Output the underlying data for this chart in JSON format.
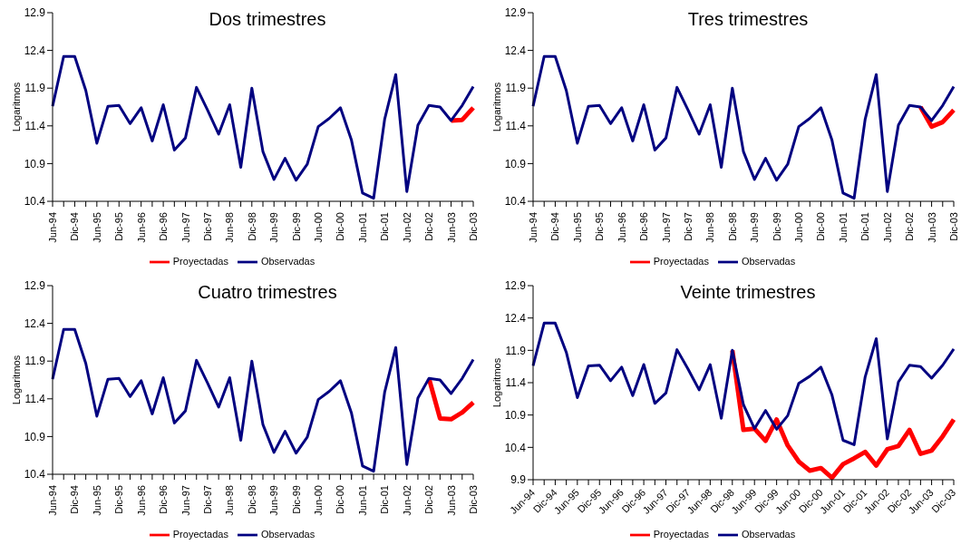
{
  "chart_data": [
    {
      "type": "line",
      "title": "Dos trimestres",
      "ylabel": "Logaritmos",
      "categories": [
        "Jun-94",
        null,
        "Dic-94",
        null,
        "Jun-95",
        null,
        "Dic-95",
        null,
        "Jun-96",
        null,
        "Dic-96",
        null,
        "Jun-97",
        null,
        "Dic-97",
        null,
        "Jun-98",
        null,
        "Dic-98",
        null,
        "Jun-99",
        null,
        "Dic-99",
        null,
        "Jun-00",
        null,
        "Dic-00",
        null,
        "Jun-01",
        null,
        "Dic-01",
        null,
        "Jun-02",
        null,
        "Dic-02",
        null,
        "Jun-03",
        null,
        "Dic-03"
      ],
      "ylim": [
        10.4,
        12.9
      ],
      "yticks": [
        10.4,
        10.9,
        11.4,
        11.9,
        12.4,
        12.9
      ],
      "grid": false,
      "legend": "bottom",
      "marker": "none",
      "series": [
        {
          "name": "Proyectadas",
          "color": "#ff0000",
          "values": [
            null,
            null,
            null,
            null,
            null,
            null,
            null,
            null,
            null,
            null,
            null,
            null,
            null,
            null,
            null,
            null,
            null,
            null,
            null,
            null,
            null,
            null,
            null,
            null,
            null,
            null,
            null,
            null,
            null,
            null,
            null,
            null,
            null,
            null,
            null,
            null,
            11.47,
            11.48,
            11.64
          ]
        },
        {
          "name": "Observadas",
          "color": "#000080",
          "values": [
            11.66,
            12.32,
            12.32,
            11.87,
            11.17,
            11.66,
            11.67,
            11.43,
            11.64,
            11.2,
            11.68,
            11.08,
            11.24,
            11.91,
            11.61,
            11.29,
            11.68,
            10.85,
            11.9,
            11.06,
            10.69,
            10.97,
            10.68,
            10.89,
            11.39,
            11.5,
            11.64,
            11.21,
            10.51,
            10.44,
            11.49,
            12.08,
            10.53,
            11.41,
            11.67,
            11.65,
            11.47,
            11.67,
            11.92
          ]
        }
      ]
    },
    {
      "type": "line",
      "title": "Tres trimestres",
      "ylabel": "Logaritmos",
      "categories": [
        "Jun-94",
        null,
        "Dic-94",
        null,
        "Jun-95",
        null,
        "Dic-95",
        null,
        "Jun-96",
        null,
        "Dic-96",
        null,
        "Jun-97",
        null,
        "Dic-97",
        null,
        "Jun-98",
        null,
        "Dic-98",
        null,
        "Jun-99",
        null,
        "Dic-99",
        null,
        "Jun-00",
        null,
        "Dic-00",
        null,
        "Jun-01",
        null,
        "Dic-01",
        null,
        "Jun-02",
        null,
        "Dic-02",
        null,
        "Jun-03",
        null,
        "Dic-03"
      ],
      "ylim": [
        10.4,
        12.9
      ],
      "yticks": [
        10.4,
        10.9,
        11.4,
        11.9,
        12.4,
        12.9
      ],
      "grid": false,
      "legend": "bottom",
      "marker": "none",
      "series": [
        {
          "name": "Proyectadas",
          "color": "#ff0000",
          "values": [
            null,
            null,
            null,
            null,
            null,
            null,
            null,
            null,
            null,
            null,
            null,
            null,
            null,
            null,
            null,
            null,
            null,
            null,
            null,
            null,
            null,
            null,
            null,
            null,
            null,
            null,
            null,
            null,
            null,
            null,
            null,
            null,
            null,
            null,
            null,
            11.65,
            11.39,
            11.45,
            11.61
          ]
        },
        {
          "name": "Observadas",
          "color": "#000080",
          "values": [
            11.66,
            12.32,
            12.32,
            11.87,
            11.17,
            11.66,
            11.67,
            11.43,
            11.64,
            11.2,
            11.68,
            11.08,
            11.24,
            11.91,
            11.61,
            11.29,
            11.68,
            10.85,
            11.9,
            11.06,
            10.69,
            10.97,
            10.68,
            10.89,
            11.39,
            11.5,
            11.64,
            11.21,
            10.51,
            10.44,
            11.49,
            12.08,
            10.53,
            11.41,
            11.67,
            11.65,
            11.47,
            11.67,
            11.92
          ]
        }
      ]
    },
    {
      "type": "line",
      "title": "Cuatro trimestres",
      "ylabel": "Logaritmos",
      "categories": [
        "Jun-94",
        null,
        "Dic-94",
        null,
        "Jun-95",
        null,
        "Dic-95",
        null,
        "Jun-96",
        null,
        "Dic-96",
        null,
        "Jun-97",
        null,
        "Dic-97",
        null,
        "Jun-98",
        null,
        "Dic-98",
        null,
        "Jun-99",
        null,
        "Dic-99",
        null,
        "Jun-00",
        null,
        "Dic-00",
        null,
        "Jun-01",
        null,
        "Dic-01",
        null,
        "Jun-02",
        null,
        "Dic-02",
        null,
        "Jun-03",
        null,
        "Dic-03"
      ],
      "ylim": [
        10.4,
        12.9
      ],
      "yticks": [
        10.4,
        10.9,
        11.4,
        11.9,
        12.4,
        12.9
      ],
      "grid": false,
      "legend": "bottom",
      "marker": "none",
      "series": [
        {
          "name": "Proyectadas",
          "color": "#ff0000",
          "values": [
            null,
            null,
            null,
            null,
            null,
            null,
            null,
            null,
            null,
            null,
            null,
            null,
            null,
            null,
            null,
            null,
            null,
            null,
            null,
            null,
            null,
            null,
            null,
            null,
            null,
            null,
            null,
            null,
            null,
            null,
            null,
            null,
            null,
            null,
            11.67,
            11.14,
            11.13,
            11.22,
            11.35
          ]
        },
        {
          "name": "Observadas",
          "color": "#000080",
          "values": [
            11.66,
            12.32,
            12.32,
            11.87,
            11.17,
            11.66,
            11.67,
            11.43,
            11.64,
            11.2,
            11.68,
            11.08,
            11.24,
            11.91,
            11.61,
            11.29,
            11.68,
            10.85,
            11.9,
            11.06,
            10.69,
            10.97,
            10.68,
            10.89,
            11.39,
            11.5,
            11.64,
            11.21,
            10.51,
            10.44,
            11.49,
            12.08,
            10.53,
            11.41,
            11.67,
            11.65,
            11.47,
            11.67,
            11.92
          ]
        }
      ]
    },
    {
      "type": "line",
      "title": "Veinte trimestres",
      "ylabel": "Logaritmos",
      "categories": [
        "Jun-94",
        null,
        "Dic-94",
        null,
        "Jun-95",
        null,
        "Dic-95",
        null,
        "Jun-96",
        null,
        "Dic-96",
        null,
        "Jun-97",
        null,
        "Dic-97",
        null,
        "Jun-98",
        null,
        "Dic-98",
        null,
        "Jun-99",
        null,
        "Dic-99",
        null,
        "Jun-00",
        null,
        "Dic-00",
        null,
        "Jun-01",
        null,
        "Dic-01",
        null,
        "Jun-02",
        null,
        "Dic-02",
        null,
        "Jun-03",
        null,
        "Dic-03"
      ],
      "ylim": [
        9.9,
        12.9
      ],
      "yticks": [
        9.9,
        10.4,
        10.9,
        11.4,
        11.9,
        12.4,
        12.9
      ],
      "grid": false,
      "legend": "bottom",
      "marker": "none",
      "series": [
        {
          "name": "Proyectadas",
          "color": "#ff0000",
          "values": [
            null,
            null,
            null,
            null,
            null,
            null,
            null,
            null,
            null,
            null,
            null,
            null,
            null,
            null,
            null,
            null,
            null,
            null,
            11.9,
            10.67,
            10.69,
            10.5,
            10.83,
            10.43,
            10.18,
            10.04,
            10.08,
            9.93,
            10.14,
            10.23,
            10.33,
            10.12,
            10.37,
            10.42,
            10.67,
            10.3,
            10.35,
            10.57,
            10.83
          ]
        },
        {
          "name": "Observadas",
          "color": "#000080",
          "values": [
            11.66,
            12.32,
            12.32,
            11.87,
            11.17,
            11.66,
            11.67,
            11.43,
            11.64,
            11.2,
            11.68,
            11.08,
            11.24,
            11.91,
            11.61,
            11.29,
            11.68,
            10.85,
            11.9,
            11.06,
            10.69,
            10.97,
            10.68,
            10.89,
            11.39,
            11.5,
            11.64,
            11.21,
            10.51,
            10.44,
            11.49,
            12.08,
            10.53,
            11.41,
            11.67,
            11.65,
            11.47,
            11.67,
            11.92
          ]
        }
      ]
    }
  ]
}
